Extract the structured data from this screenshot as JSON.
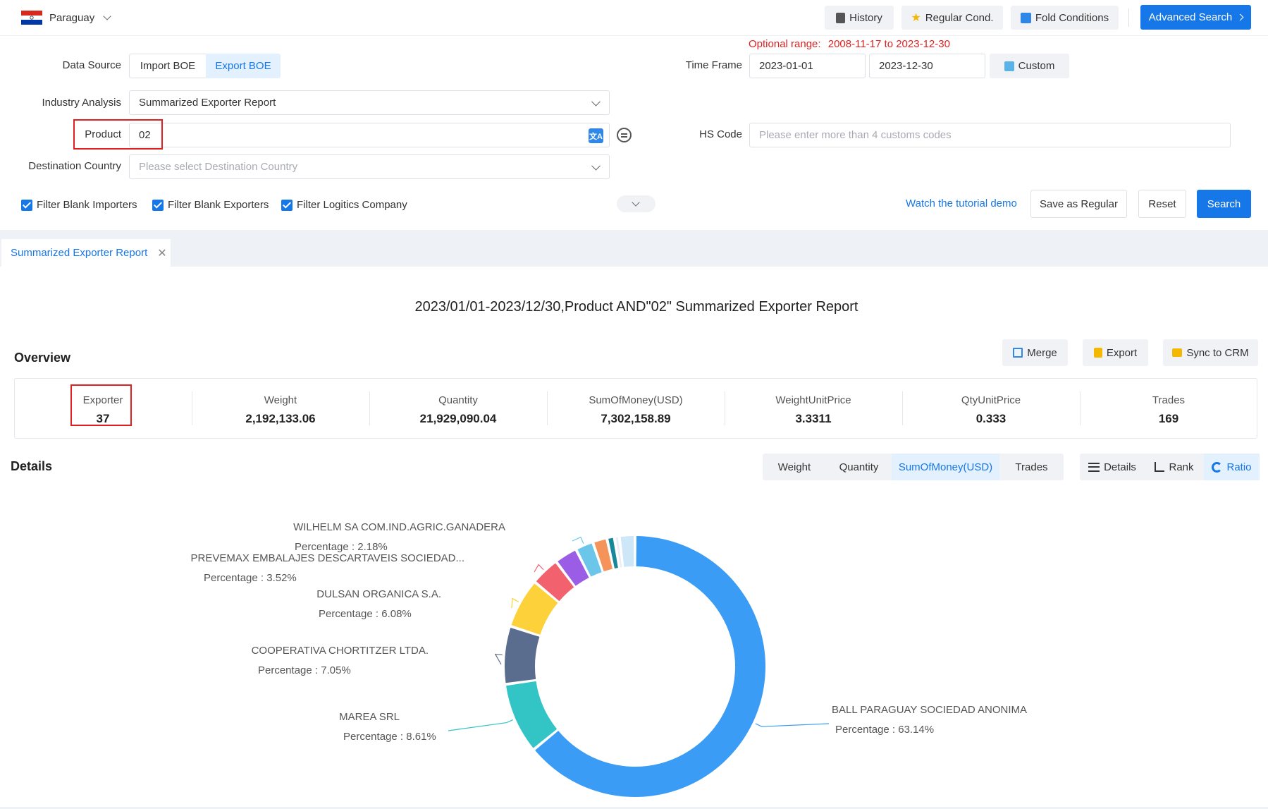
{
  "header": {
    "country": "Paraguay",
    "history": "History",
    "regular_cond": "Regular Cond.",
    "fold_conditions": "Fold Conditions",
    "advanced_search": "Advanced Search"
  },
  "form": {
    "optional_range_label": "Optional range:",
    "optional_range_value": "2008-11-17 to 2023-12-30",
    "data_source_label": "Data Source",
    "import_boe": "Import BOE",
    "export_boe": "Export BOE",
    "time_frame_label": "Time Frame",
    "time_from": "2023-01-01",
    "time_to": "2023-12-30",
    "custom": "Custom",
    "industry_label": "Industry Analysis",
    "industry_value": "Summarized Exporter Report",
    "product_label": "Product",
    "product_value": "02",
    "hs_code_label": "HS Code",
    "hs_code_placeholder": "Please enter more than 4 customs codes",
    "destination_label": "Destination Country",
    "destination_placeholder": "Please select Destination Country",
    "filter_importers": "Filter Blank Importers",
    "filter_exporters": "Filter Blank Exporters",
    "filter_logistics": "Filter Logitics Company",
    "tutorial": "Watch the tutorial demo",
    "save_regular": "Save as Regular",
    "reset": "Reset",
    "search": "Search"
  },
  "tabs": {
    "active_tab": "Summarized Exporter Report"
  },
  "report": {
    "title": "2023/01/01-2023/12/30,Product AND\"02\" Summarized Exporter Report",
    "overview_label": "Overview",
    "merge": "Merge",
    "export": "Export",
    "sync_crm": "Sync to CRM",
    "stats": [
      {
        "title": "Exporter",
        "value": "37"
      },
      {
        "title": "Weight",
        "value": "2,192,133.06"
      },
      {
        "title": "Quantity",
        "value": "21,929,090.04"
      },
      {
        "title": "SumOfMoney(USD)",
        "value": "7,302,158.89"
      },
      {
        "title": "WeightUnitPrice",
        "value": "3.3311"
      },
      {
        "title": "QtyUnitPrice",
        "value": "0.333"
      },
      {
        "title": "Trades",
        "value": "169"
      }
    ],
    "details_label": "Details",
    "metric_tabs": [
      "Weight",
      "Quantity",
      "SumOfMoney(USD)",
      "Trades"
    ],
    "active_metric": "SumOfMoney(USD)",
    "view_details": "Details",
    "view_rank": "Rank",
    "view_ratio": "Ratio"
  },
  "chart_data": {
    "type": "pie",
    "percentage_prefix": "Percentage :",
    "slices": [
      {
        "name": "BALL PARAGUAY SOCIEDAD ANONIMA",
        "value": 63.14,
        "label": "63.14%",
        "color": "#3a9cf5"
      },
      {
        "name": "MAREA SRL",
        "value": 8.61,
        "label": "8.61%",
        "color": "#33c4c6"
      },
      {
        "name": "COOPERATIVA CHORTITZER LTDA.",
        "value": 7.05,
        "label": "7.05%",
        "color": "#5a6d8e"
      },
      {
        "name": "DULSAN ORGANICA S.A.",
        "value": 6.08,
        "label": "6.08%",
        "color": "#fcd13a"
      },
      {
        "name": "PREVEMAX EMBALAJES DESCARTAVEIS SOCIEDAD...",
        "value": 3.52,
        "label": "3.52%",
        "color": "#f2616e"
      },
      {
        "name": "",
        "value": 2.8,
        "label": "",
        "color": "#9b5de5"
      },
      {
        "name": "WILHELM SA COM.IND.AGRIC.GANADERA",
        "value": 2.18,
        "label": "2.18%",
        "color": "#6cc6ea"
      },
      {
        "name": "",
        "value": 1.75,
        "label": "",
        "color": "#f4945a"
      },
      {
        "name": "",
        "value": 0.9,
        "label": "",
        "color": "#17889a"
      },
      {
        "name": "",
        "value": 0.6,
        "label": "",
        "color": "#e9eef5"
      },
      {
        "name": "",
        "value": 1.9,
        "label": "",
        "color": "#cde6f8"
      }
    ]
  }
}
